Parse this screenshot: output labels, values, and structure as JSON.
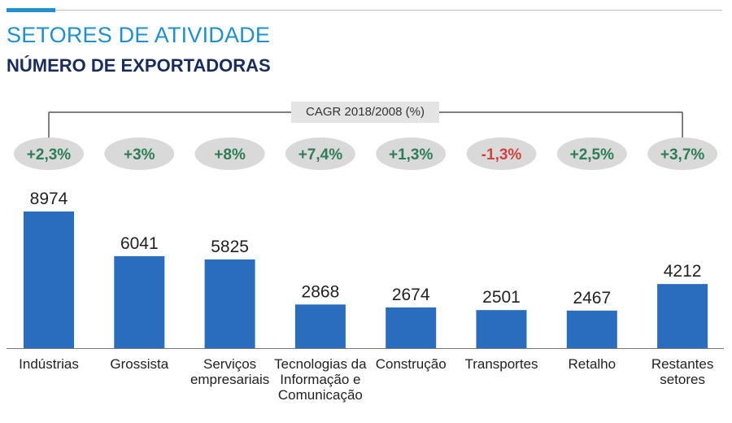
{
  "header": {
    "title": "SETORES DE ATIVIDADE",
    "subtitle": "NÚMERO DE EXPORTADORAS"
  },
  "colors": {
    "bar": "#2a6dbf",
    "title": "#1f8fd0",
    "subtitle": "#1a2d5a",
    "positive": "#2e7d57",
    "negative": "#d0423f",
    "pill": "#d9d9d9"
  },
  "chart_data": {
    "type": "bar",
    "title": "NÚMERO DE EXPORTADORAS",
    "categories": [
      "Indústrias",
      "Grossista",
      "Serviços\nempresariais",
      "Tecnologias da\nInformação e\nComunicação",
      "Construção",
      "Transportes",
      "Retalho",
      "Restantes\nsetores"
    ],
    "values": [
      8974,
      6041,
      5825,
      2868,
      2674,
      2501,
      2467,
      4212
    ],
    "value_labels": [
      "8974",
      "6041",
      "5825",
      "2868",
      "2674",
      "2501",
      "2467",
      "4212"
    ],
    "cagr_caption": "CAGR 2018/2008 (%)",
    "cagr_labels": [
      "+2,3%",
      "+3%",
      "+8%",
      "+7,4%",
      "+1,3%",
      "-1,3%",
      "+2,5%",
      "+3,7%"
    ],
    "cagr_values": [
      2.3,
      3,
      8,
      7.4,
      1.3,
      -1.3,
      2.5,
      3.7
    ],
    "xlabel": "",
    "ylabel": "",
    "ylim": [
      0,
      9000
    ],
    "grid": false,
    "legend": "none"
  }
}
